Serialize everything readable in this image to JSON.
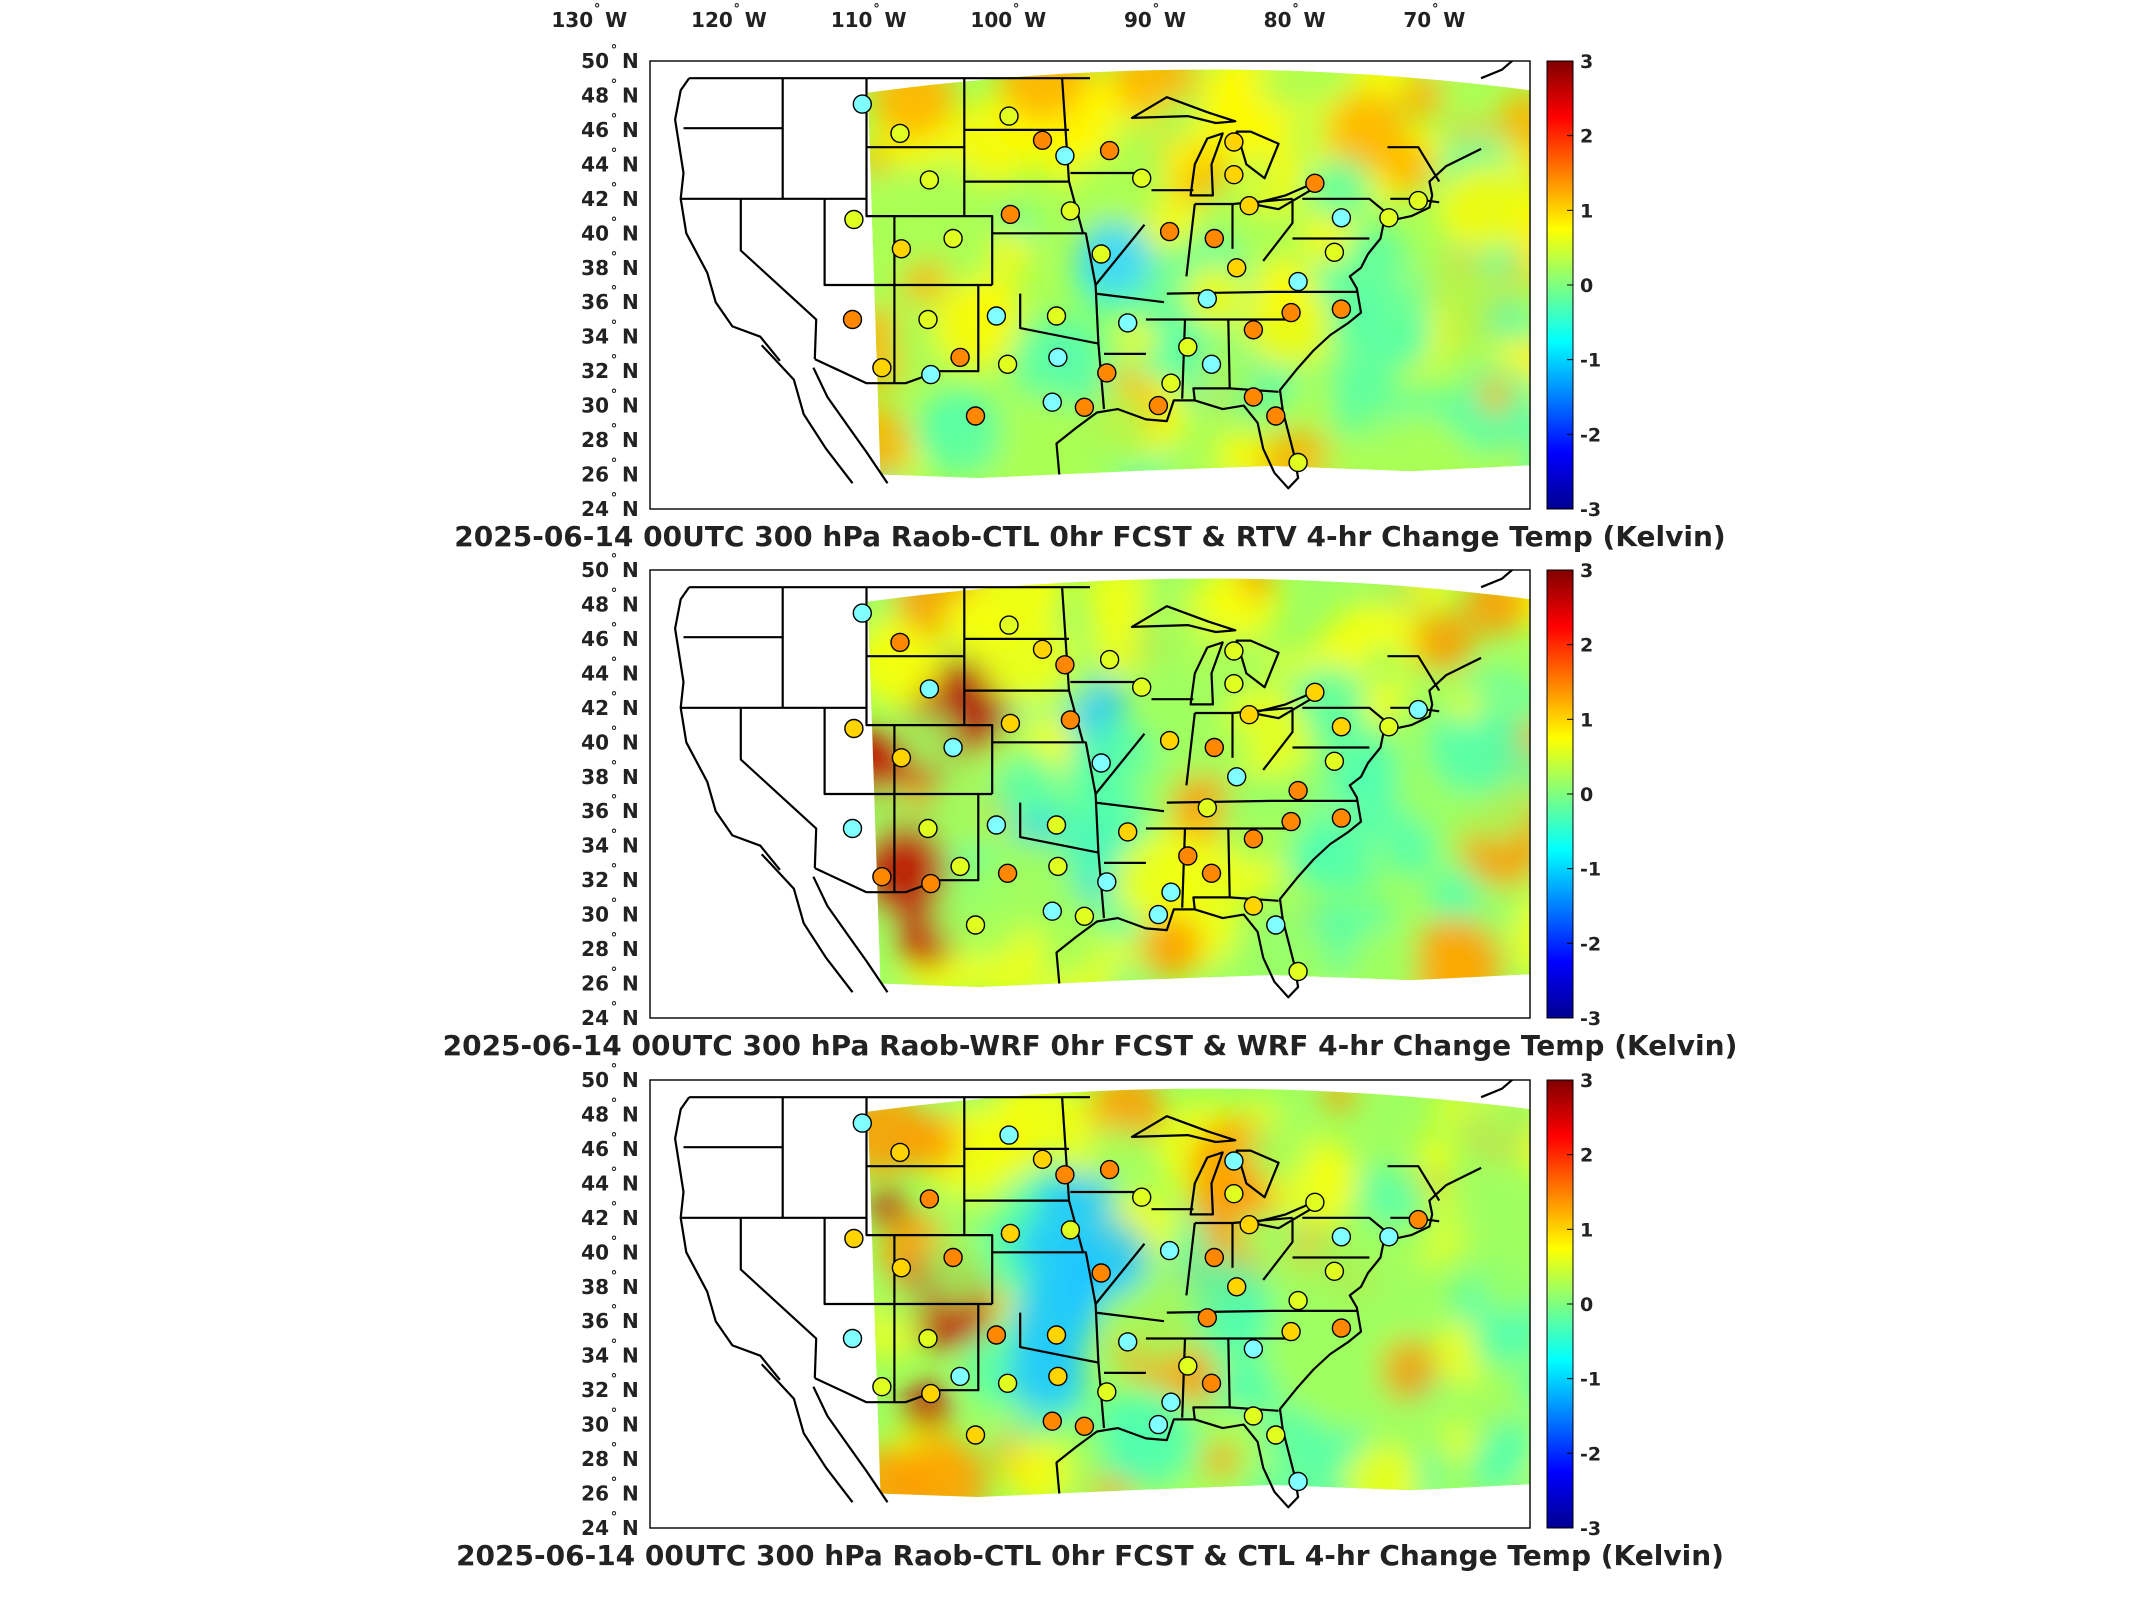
{
  "top_axis": {
    "longitude_labels": [
      {
        "deg": "130",
        "hemi": "W"
      },
      {
        "deg": "120",
        "hemi": "W"
      },
      {
        "deg": "110",
        "hemi": "W"
      },
      {
        "deg": "100",
        "hemi": "W"
      },
      {
        "deg": "90",
        "hemi": "W"
      },
      {
        "deg": "80",
        "hemi": "W"
      },
      {
        "deg": "70",
        "hemi": "W"
      }
    ],
    "longitude_values": [
      -130,
      -120,
      -110,
      -100,
      -90,
      -80,
      -70
    ]
  },
  "latitude_labels": [
    {
      "deg": "50",
      "hemi": "N",
      "value": 50
    },
    {
      "deg": "48",
      "hemi": "N",
      "value": 48
    },
    {
      "deg": "46",
      "hemi": "N",
      "value": 46
    },
    {
      "deg": "44",
      "hemi": "N",
      "value": 44
    },
    {
      "deg": "42",
      "hemi": "N",
      "value": 42
    },
    {
      "deg": "40",
      "hemi": "N",
      "value": 40
    },
    {
      "deg": "38",
      "hemi": "N",
      "value": 38
    },
    {
      "deg": "36",
      "hemi": "N",
      "value": 36
    },
    {
      "deg": "34",
      "hemi": "N",
      "value": 34
    },
    {
      "deg": "32",
      "hemi": "N",
      "value": 32
    },
    {
      "deg": "30",
      "hemi": "N",
      "value": 30
    },
    {
      "deg": "28",
      "hemi": "N",
      "value": 28
    },
    {
      "deg": "26",
      "hemi": "N",
      "value": 26
    },
    {
      "deg": "24",
      "hemi": "N",
      "value": 24
    }
  ],
  "colorbar": {
    "min": -3,
    "max": 3,
    "tick_labels": [
      "3",
      "2",
      "1",
      "0",
      "-1",
      "-2",
      "-3"
    ],
    "colormap": "jet",
    "colors": [
      "#00008f",
      "#0000ff",
      "#00ffff",
      "#ffff00",
      "#ff0000",
      "#800000"
    ]
  },
  "panels": [
    {
      "title": "2025-06-14 00UTC 300 hPa Raob-CTL 0hr FCST & RTV 4-hr Change Temp (Kelvin)",
      "field_colors": [
        "#3fd5ff",
        "#55ffaa",
        "#aaff55",
        "#fffa00",
        "#ffb000",
        "#ff4800"
      ],
      "station_fill_colors": [
        "#7fffff",
        "#e0ff20",
        "#ffd400",
        "#ff8800"
      ]
    },
    {
      "title": "2025-06-14 00UTC 300 hPa Raob-WRF 0hr FCST & WRF 4-hr Change Temp (Kelvin)",
      "field_colors": [
        "#20c8ff",
        "#50ffb0",
        "#a0ff60",
        "#f5ff10",
        "#ff9a00",
        "#c00000"
      ],
      "station_fill_colors": [
        "#7fffff",
        "#e0ff20",
        "#ffd400",
        "#ff8800"
      ]
    },
    {
      "title": "2025-06-14 00UTC 300 hPa Raob-CTL 0hr FCST & CTL 4-hr Change Temp (Kelvin)",
      "field_colors": [
        "#20c8ff",
        "#50ffb0",
        "#a0ff60",
        "#f5ff10",
        "#ff9a00",
        "#c00000"
      ],
      "station_fill_colors": [
        "#7fffff",
        "#e0ff20",
        "#ffd400",
        "#ff8800"
      ]
    }
  ]
}
